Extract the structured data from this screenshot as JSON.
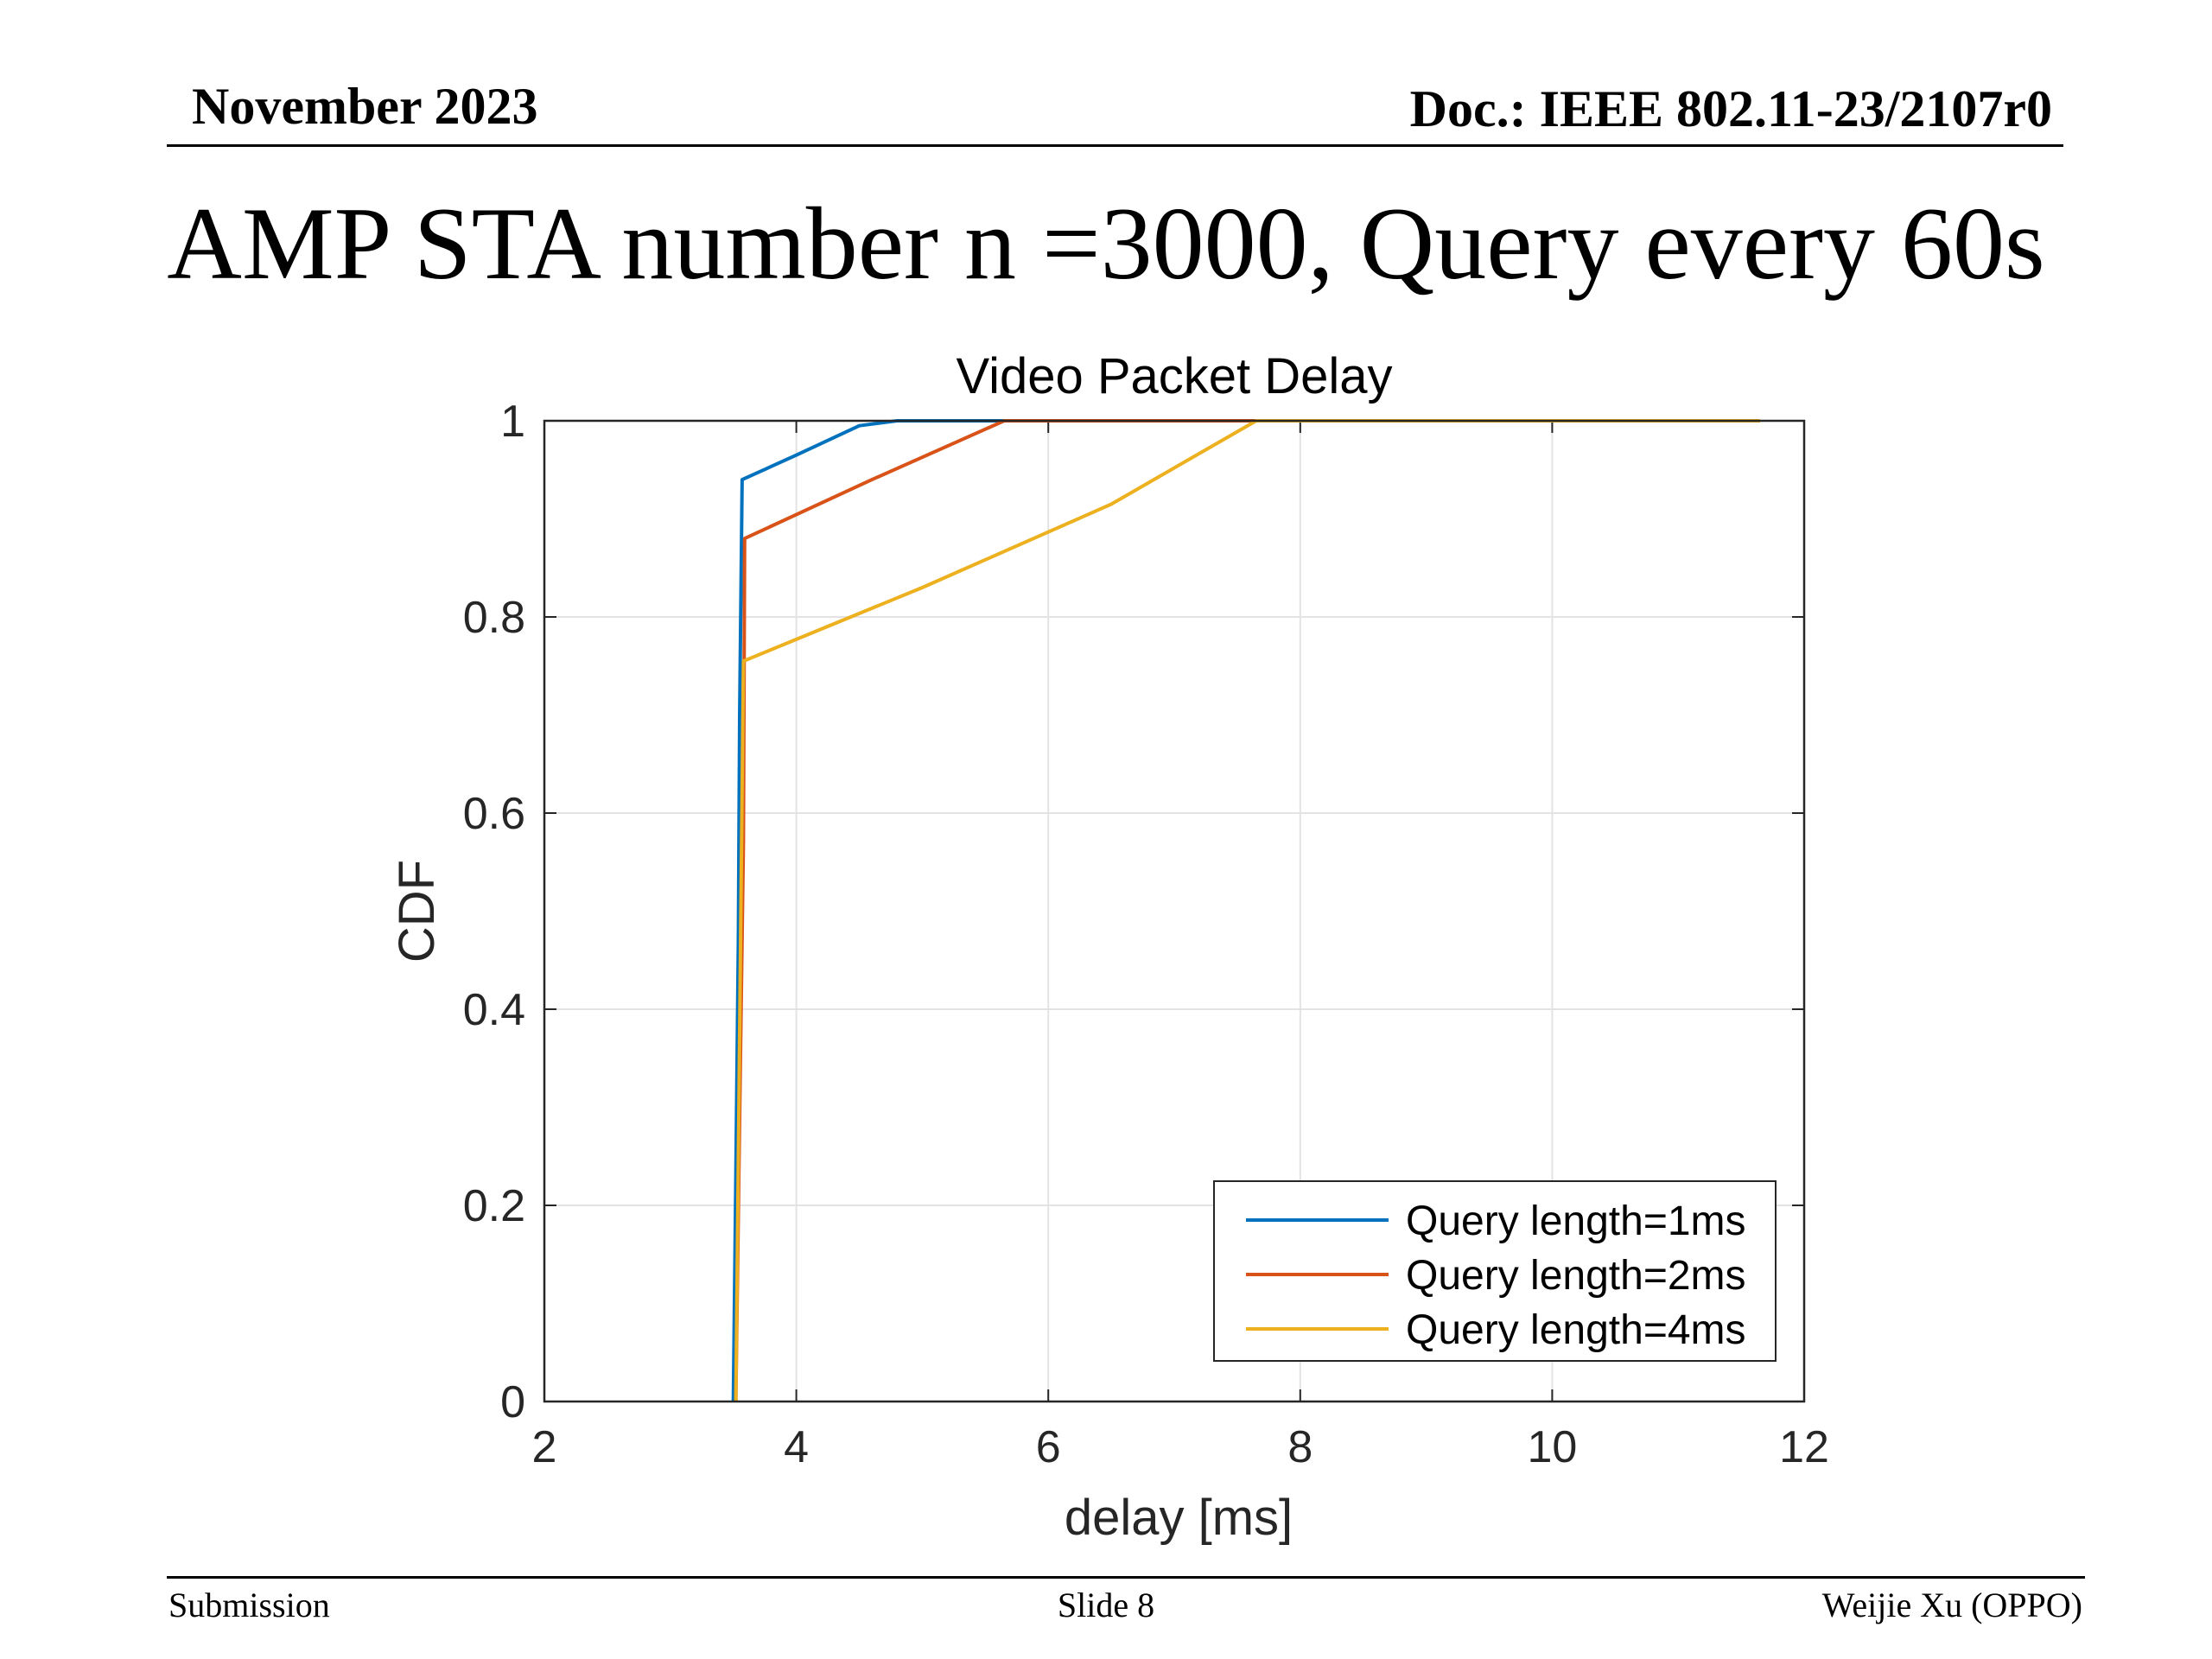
{
  "header": {
    "date": "November 2023",
    "doc": "Doc.: IEEE 802.11-23/2107r0"
  },
  "slide": {
    "title": "AMP STA number n =3000, Query every 60s"
  },
  "footer": {
    "left": "Submission",
    "center": "Slide 8",
    "right": "Weijie Xu (OPPO)"
  },
  "chart_data": {
    "type": "line",
    "title": "Video Packet Delay",
    "xlabel": "delay [ms]",
    "ylabel": "CDF",
    "xlim": [
      2,
      12
    ],
    "ylim": [
      0,
      1
    ],
    "xticks": [
      "2",
      "4",
      "6",
      "8",
      "10",
      "12"
    ],
    "yticks": [
      "0",
      "0.2",
      "0.4",
      "0.6",
      "0.8",
      "1"
    ],
    "grid": true,
    "legend_position": "bottom-right",
    "series": [
      {
        "name": "Query length=1ms",
        "color": "#0072BD",
        "points": [
          [
            3.5,
            0
          ],
          [
            3.52,
            0.23
          ],
          [
            3.54,
            0.47
          ],
          [
            3.55,
            0.7
          ],
          [
            3.57,
            0.94
          ],
          [
            4.0,
            0.965
          ],
          [
            4.5,
            0.995
          ],
          [
            4.8,
            1.0
          ],
          [
            5.7,
            1.0
          ]
        ]
      },
      {
        "name": "Query length=2ms",
        "color": "#D95319",
        "points": [
          [
            3.52,
            0
          ],
          [
            3.54,
            0.19
          ],
          [
            3.56,
            0.38
          ],
          [
            3.58,
            0.57
          ],
          [
            3.59,
            0.88
          ],
          [
            4.6,
            0.94
          ],
          [
            5.65,
            1.0
          ],
          [
            8.8,
            1.0
          ]
        ]
      },
      {
        "name": "Query length=4ms",
        "color": "#EDB120",
        "points": [
          [
            3.52,
            0
          ],
          [
            3.58,
            0.755
          ],
          [
            5.0,
            0.83
          ],
          [
            6.5,
            0.915
          ],
          [
            7.65,
            1.0
          ],
          [
            11.65,
            1.0
          ]
        ]
      }
    ]
  }
}
